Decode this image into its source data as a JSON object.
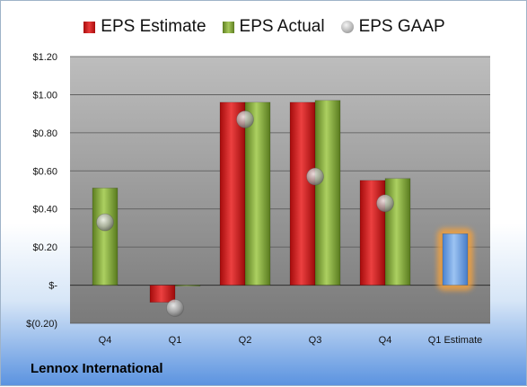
{
  "chart_data": {
    "type": "bar",
    "categories": [
      "Q4",
      "Q1",
      "Q2",
      "Q3",
      "Q4",
      "Q1 Estimate"
    ],
    "series": [
      {
        "name": "EPS Estimate",
        "values": [
          null,
          -0.09,
          0.96,
          0.96,
          0.55,
          null
        ],
        "color": "#d42020"
      },
      {
        "name": "EPS Actual",
        "values": [
          0.51,
          0.0,
          0.96,
          0.97,
          0.56,
          null
        ],
        "color": "#86a83c"
      },
      {
        "name": "EPS GAAP",
        "values": [
          0.33,
          -0.12,
          0.87,
          0.57,
          0.43,
          null
        ],
        "color": "#a8a8a8",
        "marker": "circle"
      },
      {
        "name": "",
        "values": [
          null,
          null,
          null,
          null,
          null,
          0.27
        ],
        "color": "#6ea3e6",
        "highlight": "#f0a040"
      }
    ],
    "y_ticks": [
      "$1.20",
      "$1.00",
      "$0.80",
      "$0.60",
      "$0.40",
      "$0.20",
      "$-",
      "$(0.20)"
    ],
    "ylim": [
      -0.2,
      1.2
    ],
    "grid": true,
    "legend_position": "top",
    "title": "",
    "xlabel": "",
    "ylabel": ""
  },
  "legend": {
    "estimate": "EPS Estimate",
    "actual": "EPS Actual",
    "gaap": "EPS GAAP"
  },
  "company": "Lennox International"
}
